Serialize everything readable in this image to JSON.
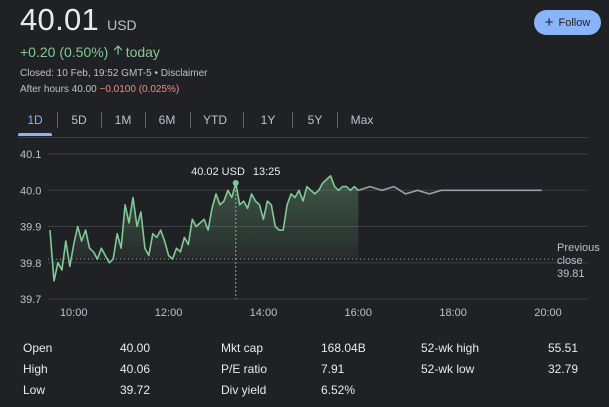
{
  "quote": {
    "price": "40.01",
    "currency": "USD",
    "change": "+0.20 (0.50%)",
    "change_period": "today",
    "closed_text": "Closed: 10 Feb, 19:52 GMT-5 • Disclaimer",
    "after_hours_label": "After hours 40.00",
    "after_hours_change": "−0.0100 (0.025%)"
  },
  "follow_button": {
    "label": "Follow",
    "icon": "plus-icon"
  },
  "ranges": [
    "1D",
    "5D",
    "1M",
    "6M",
    "YTD",
    "1Y",
    "5Y",
    "Max"
  ],
  "active_range": "1D",
  "colors": {
    "up": "#81c995",
    "down": "#f28b82",
    "accent": "#8ab4f8",
    "background": "#202124"
  },
  "chart_data": {
    "type": "line",
    "y_ticks": [
      "40.1",
      "40.0",
      "39.9",
      "39.8",
      "39.7"
    ],
    "x_ticks": [
      "10:00",
      "12:00",
      "14:00",
      "16:00",
      "18:00",
      "20:00"
    ],
    "ylim": [
      39.7,
      40.1
    ],
    "xlim": [
      "09:30",
      "20:00"
    ],
    "tooltip": {
      "price": "40.02 USD",
      "time": "13:25"
    },
    "previous_close": {
      "label_line1": "Previous",
      "label_line2": "close",
      "value": "39.81",
      "y": 39.81
    },
    "series": [
      {
        "session": "regular",
        "x": [
          "09:30",
          "09:35",
          "09:40",
          "09:45",
          "09:50",
          "09:55",
          "10:00",
          "10:05",
          "10:10",
          "10:15",
          "10:20",
          "10:25",
          "10:30",
          "10:35",
          "10:40",
          "10:45",
          "10:50",
          "10:55",
          "11:00",
          "11:05",
          "11:10",
          "11:15",
          "11:20",
          "11:25",
          "11:30",
          "11:35",
          "11:40",
          "11:45",
          "11:50",
          "11:55",
          "12:00",
          "12:05",
          "12:10",
          "12:15",
          "12:20",
          "12:25",
          "12:30",
          "12:35",
          "12:40",
          "12:45",
          "12:50",
          "12:55",
          "13:00",
          "13:05",
          "13:10",
          "13:15",
          "13:20",
          "13:25",
          "13:30",
          "13:35",
          "13:40",
          "13:45",
          "13:50",
          "13:55",
          "14:00",
          "14:05",
          "14:10",
          "14:15",
          "14:20",
          "14:25",
          "14:30",
          "14:35",
          "14:40",
          "14:45",
          "14:50",
          "14:55",
          "15:00",
          "15:05",
          "15:10",
          "15:15",
          "15:20",
          "15:25",
          "15:30",
          "15:35",
          "15:40",
          "15:45",
          "15:50",
          "15:55",
          "16:00"
        ],
        "y": [
          39.89,
          39.75,
          39.8,
          39.78,
          39.86,
          39.79,
          39.85,
          39.9,
          39.86,
          39.89,
          39.84,
          39.83,
          39.81,
          39.84,
          39.82,
          39.8,
          39.81,
          39.88,
          39.84,
          39.96,
          39.91,
          39.98,
          39.9,
          39.94,
          39.84,
          39.82,
          39.88,
          39.87,
          39.89,
          39.86,
          39.82,
          39.81,
          39.84,
          39.83,
          39.87,
          39.85,
          39.92,
          39.9,
          39.91,
          39.92,
          39.89,
          39.95,
          39.99,
          39.96,
          39.97,
          40.0,
          39.98,
          40.02,
          39.96,
          39.97,
          39.95,
          39.99,
          39.97,
          39.96,
          39.92,
          39.97,
          39.96,
          39.9,
          39.89,
          39.89,
          39.96,
          39.99,
          39.98,
          40.0,
          39.97,
          40.01,
          40.0,
          39.99,
          40.0,
          40.02,
          40.03,
          40.04,
          40.01,
          40.0,
          40.01,
          40.01,
          40.0,
          40.01,
          40.0
        ]
      },
      {
        "session": "after-hours",
        "x": [
          "16:00",
          "16:15",
          "16:30",
          "16:45",
          "17:00",
          "17:15",
          "17:30",
          "17:45",
          "18:00",
          "18:30",
          "19:00",
          "19:30",
          "19:52"
        ],
        "y": [
          40.0,
          40.01,
          40.0,
          40.01,
          39.99,
          40.0,
          39.99,
          40.0,
          40.0,
          40.0,
          40.0,
          40.0,
          40.0
        ]
      }
    ]
  },
  "stats": [
    {
      "label": "Open",
      "value": "40.00"
    },
    {
      "label": "High",
      "value": "40.06"
    },
    {
      "label": "Low",
      "value": "39.72"
    },
    {
      "label": "Mkt cap",
      "value": "168.04B"
    },
    {
      "label": "P/E ratio",
      "value": "7.91"
    },
    {
      "label": "Div yield",
      "value": "6.52%"
    },
    {
      "label": "52-wk high",
      "value": "55.51"
    },
    {
      "label": "52-wk low",
      "value": "32.79"
    }
  ]
}
